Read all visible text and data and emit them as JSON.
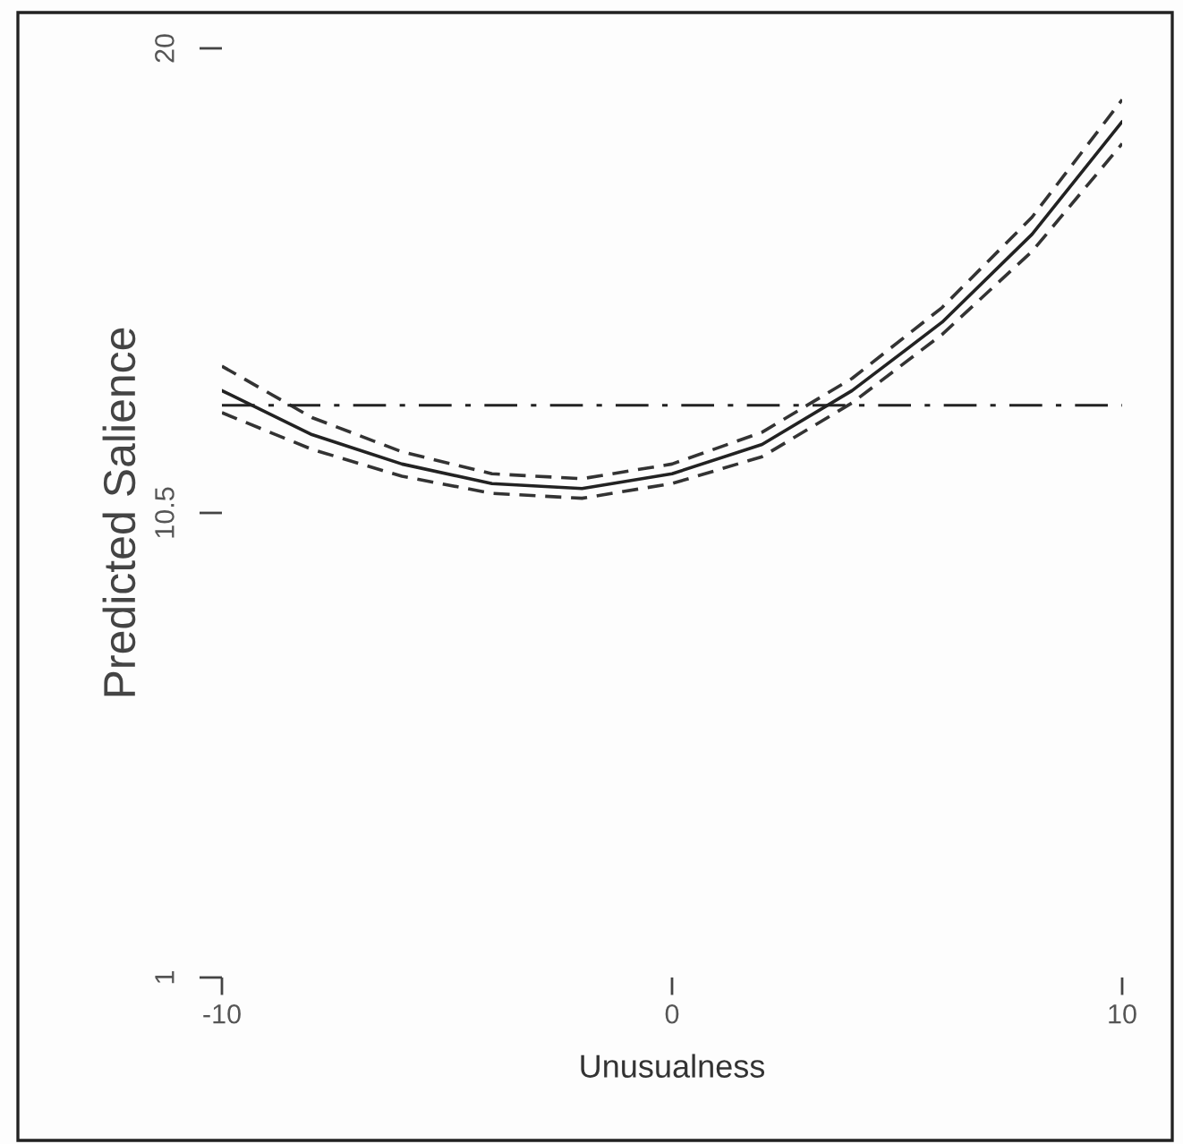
{
  "chart_data": {
    "type": "line",
    "xlabel": "Unusualness",
    "ylabel": "Predicted Salience",
    "x": [
      -10,
      -8,
      -6,
      -4,
      -2,
      0,
      2,
      4,
      6,
      8,
      10
    ],
    "series": [
      {
        "color": "#222222",
        "line_style": "solid",
        "values": [
          13.0,
          12.1,
          11.5,
          11.1,
          11.0,
          11.3,
          11.9,
          13.0,
          14.4,
          16.2,
          18.5
        ]
      },
      {
        "color": "#333333",
        "line_style": "dashed",
        "values": [
          13.5,
          12.45,
          11.75,
          11.3,
          11.2,
          11.5,
          12.15,
          13.25,
          14.7,
          16.55,
          18.95
        ]
      },
      {
        "color": "#333333",
        "line_style": "dashed",
        "values": [
          12.55,
          11.8,
          11.25,
          10.9,
          10.8,
          11.1,
          11.65,
          12.75,
          14.15,
          15.85,
          18.05
        ]
      }
    ],
    "ref_lines": [
      {
        "axis": "y",
        "value": 12.7,
        "line_style": "dashdot",
        "color": "#222222"
      }
    ],
    "xlim": [
      -10,
      10
    ],
    "ylim": [
      1,
      20
    ],
    "xticks": [
      -10,
      0,
      10
    ],
    "yticks": [
      1,
      10.5,
      20
    ],
    "grid": false,
    "legend": false
  }
}
